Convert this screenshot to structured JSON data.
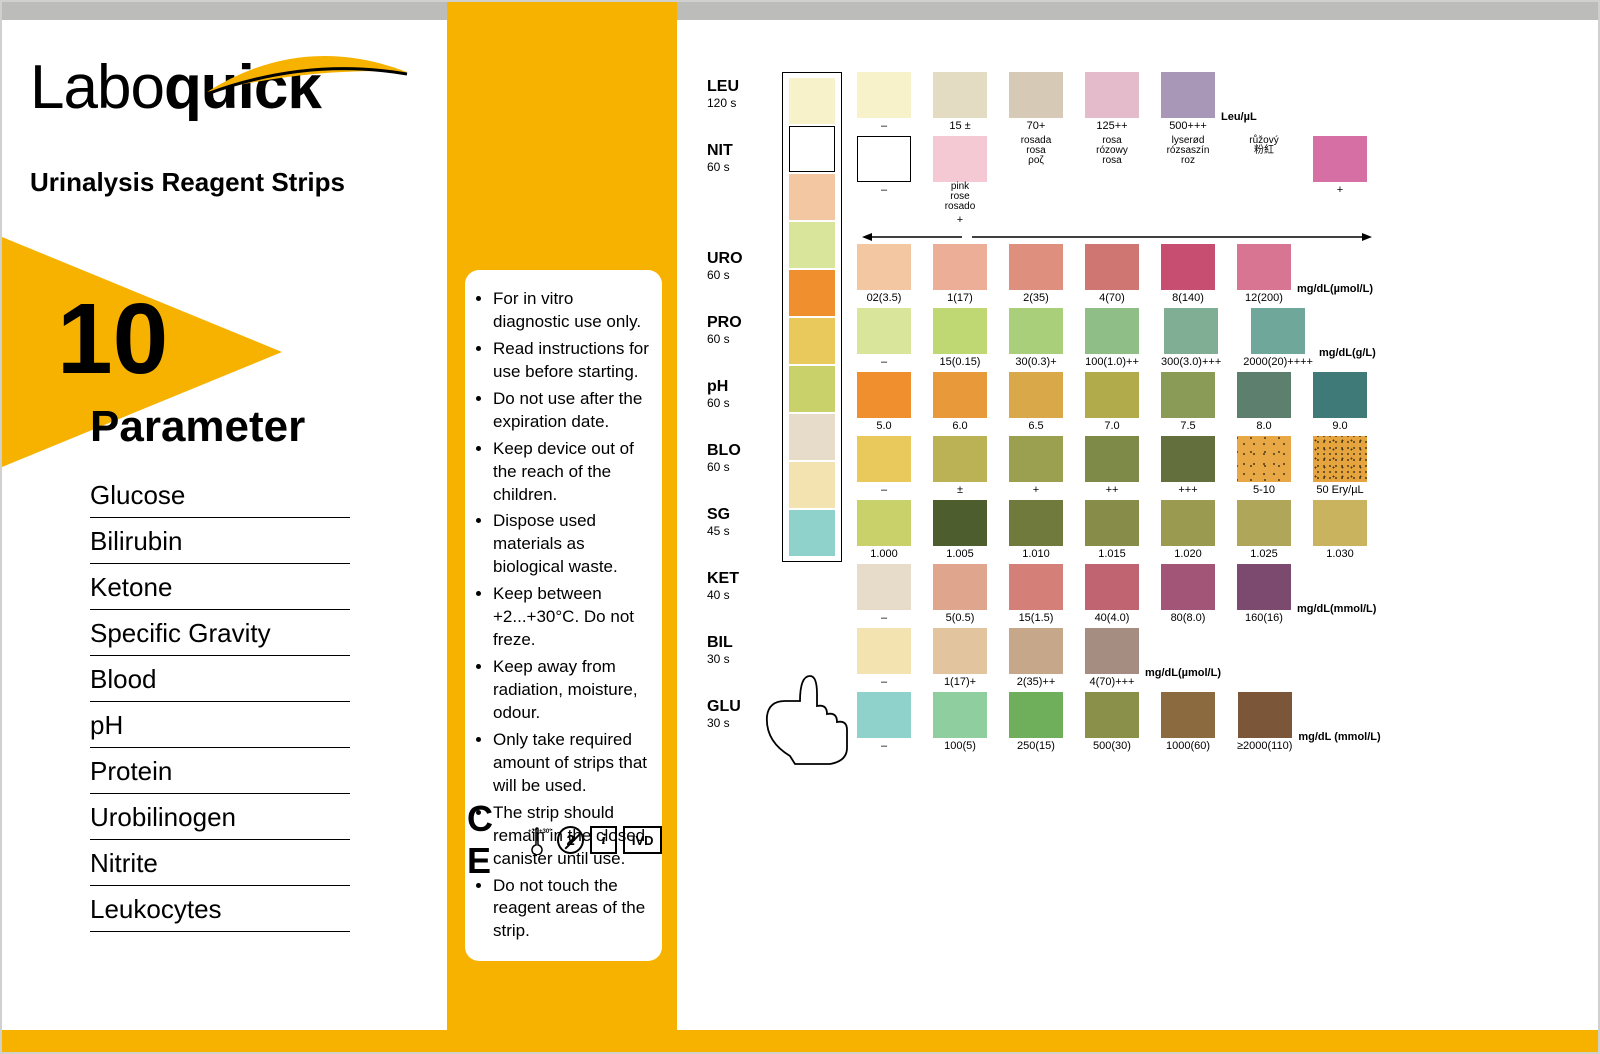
{
  "brand": {
    "part1": "Labo",
    "part2": "quick"
  },
  "subtitle": "Urinalysis Reagent Strips",
  "big_number": "10",
  "param_label": "Parameter",
  "colors": {
    "accent": "#f7b200",
    "graybar": "#bcbcba",
    "text": "#000000",
    "background": "#ffffff"
  },
  "parameters": [
    "Glucose",
    "Bilirubin",
    "Ketone",
    "Specific Gravity",
    "Blood",
    "pH",
    "Protein",
    "Urobilinogen",
    "Nitrite",
    "Leukocytes"
  ],
  "instructions": [
    "For in vitro diagnostic use only.",
    "Read instructions for use before starting.",
    "Do not use after the expiration date.",
    "Keep device out of the reach of the children.",
    "Dispose used materials as biological waste.",
    "Keep between +2...+30°C. Do not freze.",
    "Keep away from radiation, moisture, odour.",
    "Only take required amount of strips that will be used.",
    "The strip should remain in the closed canister until use.",
    "Do not touch the reagent areas of the strip."
  ],
  "cert": {
    "ce": "C E",
    "temp": "+2° +30°",
    "no2": "2",
    "info": "i",
    "ivd": "IVD"
  },
  "strip_pad_colors": [
    "#f7f2c9",
    "#ffffff",
    "#f2c7a1",
    "#d8e59a",
    "#ef8f2e",
    "#e9c95b",
    "#c9d26a",
    "#e7dbc9",
    "#f3e3b1",
    "#8fd2cc"
  ],
  "chart_rows": [
    {
      "abbr": "LEU",
      "time": "120 s",
      "unit": "Leu/µL",
      "cells": [
        {
          "c": "#f7f2c9",
          "v": "–"
        },
        {
          "c": "#e3dcc3",
          "v": "15 ±"
        },
        {
          "c": "#d6cab6",
          "v": "70+"
        },
        {
          "c": "#e3bbca",
          "v": "125++"
        },
        {
          "c": "#a997b7",
          "v": "500+++"
        }
      ]
    },
    {
      "abbr": "NIT",
      "time": "60 s",
      "unit": "",
      "cells": [
        {
          "c": "#ffffff",
          "v": "–",
          "border": true
        },
        {
          "c": "#f4c9d3",
          "v": "+",
          "subs": [
            "pink",
            "rose",
            "rosado"
          ]
        },
        {
          "c": "transparent",
          "v": "",
          "subs": [
            "rosada",
            "rosa",
            "ροζ"
          ]
        },
        {
          "c": "transparent",
          "v": "",
          "subs": [
            "rosa",
            "rózowy",
            "rosa"
          ]
        },
        {
          "c": "transparent",
          "v": "",
          "subs": [
            "lyserød",
            "rózsaszín",
            "roz"
          ]
        },
        {
          "c": "transparent",
          "v": "",
          "subs": [
            "růžový",
            "粉紅",
            ""
          ]
        },
        {
          "c": "#d66fa3",
          "v": "+"
        }
      ]
    },
    {
      "abbr": "URO",
      "time": "60 s",
      "unit": "mg/dL(µmol/L)",
      "cells": [
        {
          "c": "#f2c7a1",
          "v": "02(3.5)"
        },
        {
          "c": "#ecae96",
          "v": "1(17)"
        },
        {
          "c": "#df8f7e",
          "v": "2(35)"
        },
        {
          "c": "#cf7672",
          "v": "4(70)"
        },
        {
          "c": "#c74e70",
          "v": "8(140)"
        },
        {
          "c": "#d77593",
          "v": "12(200)"
        }
      ]
    },
    {
      "abbr": "PRO",
      "time": "60 s",
      "unit": "mg/dL(g/L)",
      "cells": [
        {
          "c": "#d8e59a",
          "v": "–"
        },
        {
          "c": "#c0d874",
          "v": "15(0.15)"
        },
        {
          "c": "#a9cf7a",
          "v": "30(0.3)+"
        },
        {
          "c": "#8fbf86",
          "v": "100(1.0)++"
        },
        {
          "c": "#7fae95",
          "v": "300(3.0)+++"
        },
        {
          "c": "#6fa79b",
          "v": "2000(20)++++"
        }
      ]
    },
    {
      "abbr": "pH",
      "time": "60 s",
      "unit": "",
      "cells": [
        {
          "c": "#ef8f2e",
          "v": "5.0"
        },
        {
          "c": "#e89a3a",
          "v": "6.0"
        },
        {
          "c": "#d9a849",
          "v": "6.5"
        },
        {
          "c": "#b2ab4c",
          "v": "7.0"
        },
        {
          "c": "#8a9a57",
          "v": "7.5"
        },
        {
          "c": "#5d7f6e",
          "v": "8.0"
        },
        {
          "c": "#3f7a78",
          "v": "9.0"
        }
      ]
    },
    {
      "abbr": "BLO",
      "time": "60 s",
      "unit": "",
      "cells": [
        {
          "c": "#e9c95b",
          "v": "–"
        },
        {
          "c": "#bab255",
          "v": "±"
        },
        {
          "c": "#9ba050",
          "v": "+"
        },
        {
          "c": "#7d8a48",
          "v": "++"
        },
        {
          "c": "#636f3d",
          "v": "+++"
        },
        {
          "c": "#e7a845",
          "v": "5-10",
          "speckle": "light"
        },
        {
          "c": "#e6a43f",
          "v": "50 Ery/µL",
          "speckle": "dense"
        }
      ]
    },
    {
      "abbr": "SG",
      "time": "45 s",
      "unit": "",
      "cells": [
        {
          "c": "#c9d26a",
          "v": "1.000"
        },
        {
          "c": "#4e5d2d",
          "v": "1.005"
        },
        {
          "c": "#6f7a3c",
          "v": "1.010"
        },
        {
          "c": "#878c49",
          "v": "1.015"
        },
        {
          "c": "#9a9a51",
          "v": "1.020"
        },
        {
          "c": "#b0a659",
          "v": "1.025"
        },
        {
          "c": "#c9b35e",
          "v": "1.030"
        }
      ]
    },
    {
      "abbr": "KET",
      "time": "40 s",
      "unit": "mg/dL(mmol/L)",
      "cells": [
        {
          "c": "#e7dbc9",
          "v": "–"
        },
        {
          "c": "#e0a68d",
          "v": "5(0.5)"
        },
        {
          "c": "#d47f78",
          "v": "15(1.5)"
        },
        {
          "c": "#c16472",
          "v": "40(4.0)"
        },
        {
          "c": "#a25576",
          "v": "80(8.0)"
        },
        {
          "c": "#7d4a6f",
          "v": "160(16)"
        }
      ]
    },
    {
      "abbr": "BIL",
      "time": "30 s",
      "unit": "mg/dL(µmol/L)",
      "cells": [
        {
          "c": "#f3e3b1",
          "v": "–"
        },
        {
          "c": "#e2c49e",
          "v": "1(17)+"
        },
        {
          "c": "#c7a789",
          "v": "2(35)++"
        },
        {
          "c": "#a68d82",
          "v": "4(70)+++"
        }
      ]
    },
    {
      "abbr": "GLU",
      "time": "30 s",
      "unit": "mg/dL (mmol/L)",
      "cells": [
        {
          "c": "#8fd2cc",
          "v": "–"
        },
        {
          "c": "#8fcf9f",
          "v": "100(5)"
        },
        {
          "c": "#6fae5a",
          "v": "250(15)"
        },
        {
          "c": "#8a8f4a",
          "v": "500(30)"
        },
        {
          "c": "#8b6a3f",
          "v": "1000(60)"
        },
        {
          "c": "#7c5638",
          "v": "≥2000(110)"
        }
      ]
    }
  ]
}
